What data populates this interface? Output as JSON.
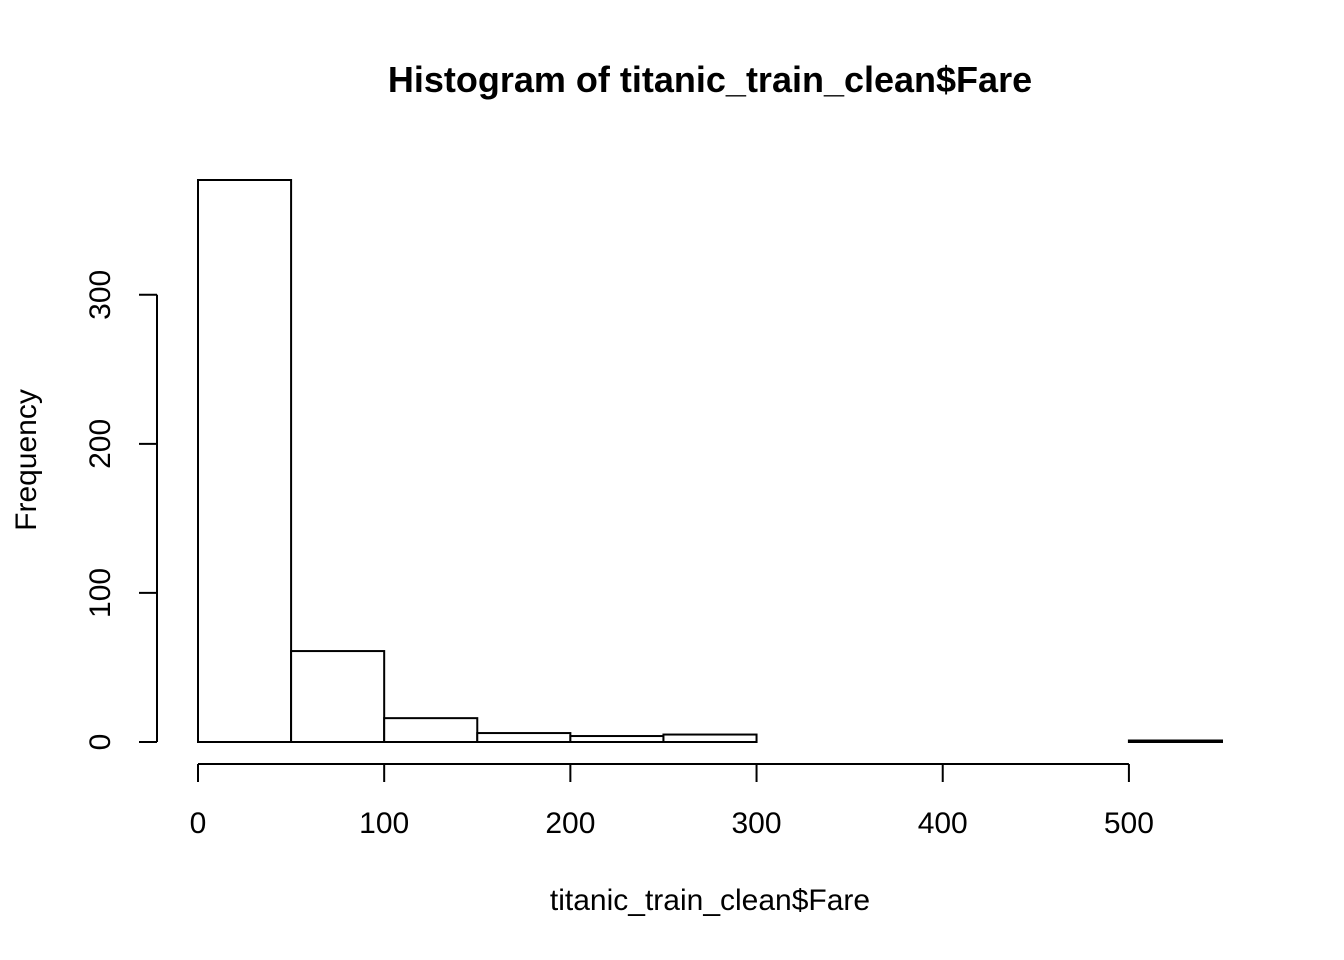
{
  "chart_data": {
    "type": "bar",
    "title": "Histogram of titanic_train_clean$Fare",
    "xlabel": "titanic_train_clean$Fare",
    "ylabel": "Frequency",
    "bins": [
      {
        "start": 0,
        "end": 50,
        "count": 377
      },
      {
        "start": 50,
        "end": 100,
        "count": 61
      },
      {
        "start": 100,
        "end": 150,
        "count": 16
      },
      {
        "start": 150,
        "end": 200,
        "count": 6
      },
      {
        "start": 200,
        "end": 250,
        "count": 4
      },
      {
        "start": 250,
        "end": 300,
        "count": 5
      },
      {
        "start": 300,
        "end": 350,
        "count": 0
      },
      {
        "start": 350,
        "end": 400,
        "count": 0
      },
      {
        "start": 400,
        "end": 450,
        "count": 0
      },
      {
        "start": 450,
        "end": 500,
        "count": 0
      },
      {
        "start": 500,
        "end": 550,
        "count": 1
      }
    ],
    "xlim": [
      0,
      550
    ],
    "ylim": [
      0,
      377
    ],
    "x_ticks": [
      0,
      100,
      200,
      300,
      400,
      500
    ],
    "y_ticks": [
      0,
      100,
      200,
      300
    ],
    "grid": false,
    "colors": {
      "bar_fill": "#ffffff",
      "bar_stroke": "#000000",
      "axis": "#000000",
      "background": "#ffffff"
    }
  }
}
